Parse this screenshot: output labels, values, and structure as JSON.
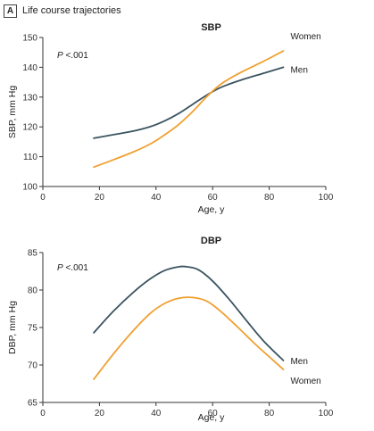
{
  "panel": {
    "letter": "A",
    "title": "Life course trajectories"
  },
  "colors": {
    "men": "#3b5460",
    "women": "#f0a030",
    "axis": "#333333"
  },
  "chart_data": [
    {
      "type": "line",
      "title": "SBP",
      "xlabel": "Age, y",
      "ylabel": "SBP, mm Hg",
      "annotation": {
        "italic": "P",
        "text": " <.001"
      },
      "xlim": [
        0,
        100
      ],
      "ylim": [
        100,
        150
      ],
      "xticks": [
        0,
        20,
        40,
        60,
        80,
        100
      ],
      "yticks": [
        100,
        110,
        120,
        130,
        140,
        150
      ],
      "grid": false,
      "series": [
        {
          "name": "Men",
          "color": "#3b5460",
          "x": [
            18,
            25,
            32,
            38,
            43,
            48,
            53,
            58,
            63,
            70,
            78,
            85
          ],
          "y": [
            116.2,
            117.4,
            118.6,
            120.1,
            122,
            124.5,
            127.6,
            130.7,
            133.3,
            135.7,
            138,
            140
          ]
        },
        {
          "name": "Women",
          "color": "#f0a030",
          "x": [
            18,
            25,
            32,
            38,
            43,
            48,
            53,
            58,
            63,
            70,
            78,
            85
          ],
          "y": [
            106.5,
            109,
            111.6,
            114.3,
            117.3,
            120.8,
            125.2,
            130.2,
            134.4,
            138.3,
            142,
            145.5
          ]
        }
      ]
    },
    {
      "type": "line",
      "title": "DBP",
      "xlabel": "Age, y",
      "ylabel": "DBP, mm Hg",
      "annotation": {
        "italic": "P",
        "text": " <.001"
      },
      "xlim": [
        0,
        100
      ],
      "ylim": [
        65,
        85
      ],
      "xticks": [
        0,
        20,
        40,
        60,
        80,
        100
      ],
      "yticks": [
        65,
        70,
        75,
        80,
        85
      ],
      "grid": false,
      "series": [
        {
          "name": "Men",
          "color": "#3b5460",
          "x": [
            18,
            25,
            32,
            38,
            43,
            48,
            51,
            55,
            60,
            66,
            72,
            78,
            85
          ],
          "y": [
            74.3,
            77.2,
            79.7,
            81.5,
            82.6,
            83.1,
            83.1,
            82.7,
            81.2,
            78.7,
            75.9,
            73.2,
            70.6
          ]
        },
        {
          "name": "Women",
          "color": "#f0a030",
          "x": [
            18,
            25,
            32,
            38,
            43,
            48,
            53,
            58,
            63,
            69,
            75,
            80,
            85
          ],
          "y": [
            68.1,
            71.5,
            74.6,
            76.9,
            78.2,
            78.9,
            79,
            78.5,
            77.1,
            75,
            72.8,
            71.1,
            69.4
          ]
        }
      ]
    }
  ]
}
